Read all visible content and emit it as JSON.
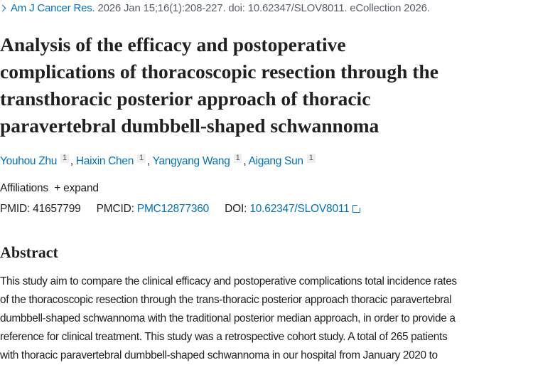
{
  "citation": {
    "journal": "Am J Cancer Res.",
    "details": " 2026 Jan 15;16(1):208-227. doi: 10.62347/SLOV8011. eCollection 2026."
  },
  "title_lines": [
    "Analysis of the efficacy and postoperative",
    "complications of thoracoscopic resection through the",
    "transthoracic posterior approach of thoracic",
    "paravertebral dumbbell-shaped schwannoma"
  ],
  "authors": [
    {
      "name": "Youhou Zhu",
      "aff": "1"
    },
    {
      "name": "Haixin Chen",
      "aff": "1"
    },
    {
      "name": "Yangyang Wang",
      "aff": "1"
    },
    {
      "name": "Aigang Sun",
      "aff": "1"
    }
  ],
  "affiliations": {
    "label": "Affiliations",
    "expand": "+ expand"
  },
  "ids": {
    "pmid_label": "PMID:",
    "pmid": "41657799",
    "pmcid_label": "PMCID:",
    "pmcid": "PMC12877360",
    "doi_label": "DOI:",
    "doi": "10.62347/SLOV8011"
  },
  "abstract": {
    "heading": "Abstract",
    "lines": [
      "This study aim to compare the clinical efficacy and postoperative complications total incidence rates",
      "of the thoracoscopic resection through the trans-thoracic posterior approach thoracic paravertebral",
      "dumbbell-shaped schwannoma with the traditional posterior median approach, in order to provide a",
      "reference for clinical treatment. This study was a retrospective cohort study. A total of 265 patients",
      "with thoracic paravertebral dumbbell-shaped schwannoma in our hospital from January 2020 to"
    ]
  },
  "colors": {
    "link": "#0071bc",
    "text": "#212121"
  }
}
